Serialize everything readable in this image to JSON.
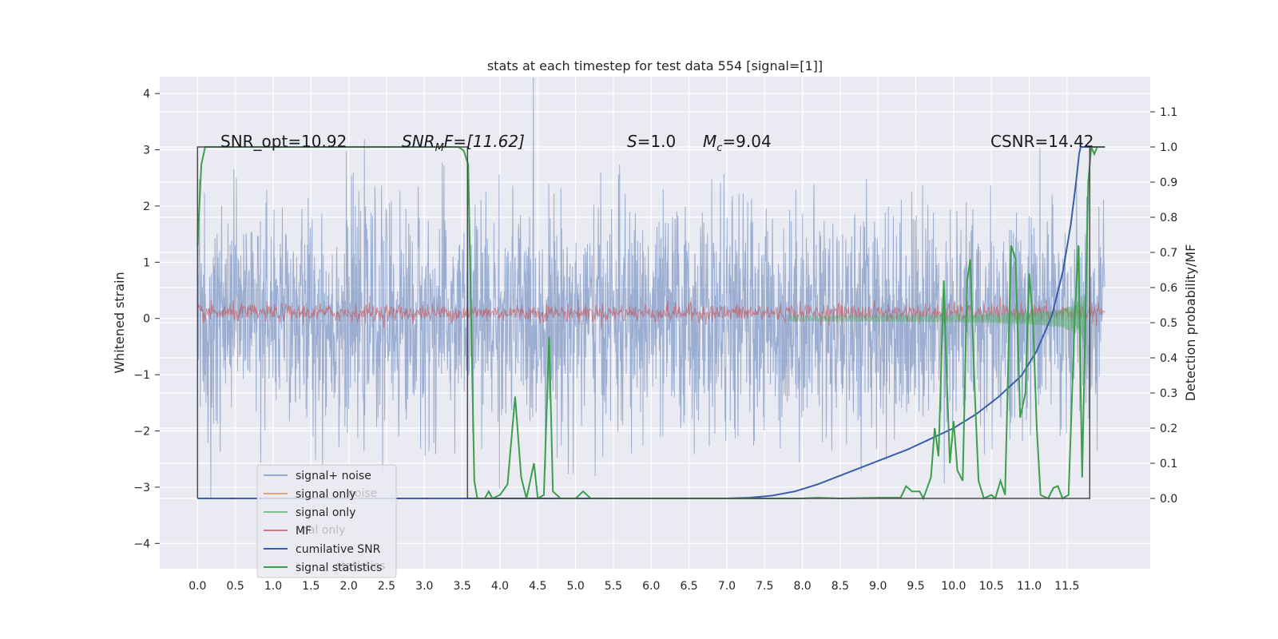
{
  "chart_data": {
    "type": "line",
    "title": "stats at each timestep for test data 554 [signal=[1]]",
    "ylabel": "Whitened strain",
    "ylabel_right": "Detection probability/MF",
    "xlim": [
      -0.5,
      12.6
    ],
    "ylim": [
      -4.45,
      4.3
    ],
    "ylim_right": [
      -0.2,
      1.2
    ],
    "xticks": [
      "0.0",
      "0.5",
      "1.0",
      "1.5",
      "2.0",
      "2.5",
      "3.0",
      "3.5",
      "4.0",
      "4.5",
      "5.0",
      "5.5",
      "6.0",
      "6.5",
      "7.0",
      "7.5",
      "8.0",
      "8.5",
      "9.0",
      "9.5",
      "10.0",
      "10.5",
      "11.0",
      "11.5"
    ],
    "yticks_left": [
      "4",
      "3",
      "2",
      "1",
      "0",
      "−1",
      "−2",
      "−3",
      "−4"
    ],
    "yticks_right": [
      "1.1",
      "1.0",
      "0.9",
      "0.8",
      "0.7",
      "0.6",
      "0.5",
      "0.4",
      "0.3",
      "0.2",
      "0.1",
      "0.0"
    ],
    "grid": true,
    "legend_position": "lower-left",
    "annotations": {
      "snr_opt": "SNR_opt=10.92",
      "snr_mf_base": "SNR",
      "snr_mf_sub": "M",
      "snr_mf_rest": "F=[11.62]",
      "s_sym": "S",
      "s_val": "=1.0",
      "mc_sym": "M",
      "mc_sub": "c",
      "mc_val": "=9.04",
      "csnr": "CSNR=14.42"
    },
    "legend": {
      "entries": [
        {
          "label": "signal+ noise",
          "color": "#4C72B0"
        },
        {
          "label": "signal only",
          "color": "#DD8452"
        },
        {
          "label": "signal only",
          "color": "#55A868"
        },
        {
          "label": "MF",
          "color": "#C44E52"
        },
        {
          "label": "cumilative SNR",
          "color": "#3A5FAA"
        },
        {
          "label": "signal statistics",
          "color": "#3BA04A"
        }
      ],
      "ghost_labels": [
        "noise",
        "nal only",
        "statistics"
      ]
    },
    "series": [
      {
        "name": "signal+ noise",
        "axis": "left",
        "style": "noise-band",
        "x_range": [
          0.0,
          12.0
        ],
        "sigma": 1.0,
        "color": "#4C72B0"
      },
      {
        "name": "MF",
        "axis": "left",
        "style": "noise-band",
        "x_range": [
          0.0,
          12.0
        ],
        "sigma": 0.08,
        "offset": 0.1,
        "color": "#C44E52"
      },
      {
        "name": "signal only",
        "axis": "left",
        "style": "chirp",
        "x_range": [
          7.8,
          11.75
        ],
        "color": "#55A868"
      },
      {
        "name": "cumilative SNR",
        "axis": "right",
        "color": "#3A5FAA",
        "points": [
          [
            0.0,
            0.0
          ],
          [
            7.0,
            0.0
          ],
          [
            7.3,
            0.002
          ],
          [
            7.6,
            0.008
          ],
          [
            7.9,
            0.02
          ],
          [
            8.2,
            0.04
          ],
          [
            8.5,
            0.065
          ],
          [
            8.8,
            0.09
          ],
          [
            9.1,
            0.115
          ],
          [
            9.4,
            0.14
          ],
          [
            9.7,
            0.17
          ],
          [
            10.0,
            0.2
          ],
          [
            10.3,
            0.24
          ],
          [
            10.6,
            0.29
          ],
          [
            10.9,
            0.35
          ],
          [
            11.1,
            0.42
          ],
          [
            11.3,
            0.52
          ],
          [
            11.45,
            0.65
          ],
          [
            11.55,
            0.78
          ],
          [
            11.62,
            0.9
          ],
          [
            11.66,
            0.98
          ],
          [
            11.68,
            1.0
          ],
          [
            12.0,
            1.0
          ]
        ]
      },
      {
        "name": "signal statistics",
        "axis": "right",
        "color": "#3BA04A",
        "points": [
          [
            0.0,
            0.72
          ],
          [
            0.05,
            0.95
          ],
          [
            0.1,
            1.0
          ],
          [
            3.45,
            1.0
          ],
          [
            3.52,
            0.99
          ],
          [
            3.58,
            0.95
          ],
          [
            3.62,
            0.5
          ],
          [
            3.66,
            0.05
          ],
          [
            3.7,
            0.0
          ],
          [
            3.8,
            0.0
          ],
          [
            3.85,
            0.02
          ],
          [
            3.9,
            0.0
          ],
          [
            4.0,
            0.01
          ],
          [
            4.1,
            0.04
          ],
          [
            4.2,
            0.29
          ],
          [
            4.28,
            0.06
          ],
          [
            4.35,
            0.0
          ],
          [
            4.45,
            0.1
          ],
          [
            4.5,
            0.0
          ],
          [
            4.58,
            0.01
          ],
          [
            4.65,
            0.46
          ],
          [
            4.7,
            0.02
          ],
          [
            4.8,
            0.0
          ],
          [
            5.0,
            0.0
          ],
          [
            5.1,
            0.02
          ],
          [
            5.2,
            0.0
          ],
          [
            6.0,
            0.0
          ],
          [
            7.0,
            0.0
          ],
          [
            7.5,
            0.0
          ],
          [
            8.0,
            0.0
          ],
          [
            8.2,
            0.002
          ],
          [
            8.5,
            0.0
          ],
          [
            9.0,
            0.002
          ],
          [
            9.3,
            0.002
          ],
          [
            9.37,
            0.035
          ],
          [
            9.45,
            0.02
          ],
          [
            9.55,
            0.02
          ],
          [
            9.6,
            0.0
          ],
          [
            9.7,
            0.06
          ],
          [
            9.75,
            0.2
          ],
          [
            9.8,
            0.12
          ],
          [
            9.87,
            0.62
          ],
          [
            9.9,
            0.4
          ],
          [
            9.95,
            0.1
          ],
          [
            10.0,
            0.22
          ],
          [
            10.05,
            0.08
          ],
          [
            10.12,
            0.05
          ],
          [
            10.18,
            0.62
          ],
          [
            10.22,
            0.68
          ],
          [
            10.28,
            0.3
          ],
          [
            10.33,
            0.05
          ],
          [
            10.4,
            0.0
          ],
          [
            10.5,
            0.01
          ],
          [
            10.55,
            0.0
          ],
          [
            10.62,
            0.05
          ],
          [
            10.68,
            0.01
          ],
          [
            10.76,
            0.72
          ],
          [
            10.82,
            0.68
          ],
          [
            10.88,
            0.23
          ],
          [
            10.95,
            0.3
          ],
          [
            11.0,
            0.64
          ],
          [
            11.05,
            0.5
          ],
          [
            11.1,
            0.2
          ],
          [
            11.15,
            0.01
          ],
          [
            11.25,
            0.0
          ],
          [
            11.32,
            0.03
          ],
          [
            11.38,
            0.035
          ],
          [
            11.44,
            0.0
          ],
          [
            11.52,
            0.01
          ],
          [
            11.6,
            0.5
          ],
          [
            11.65,
            0.72
          ],
          [
            11.7,
            0.06
          ],
          [
            11.78,
            0.9
          ],
          [
            11.82,
            1.0
          ],
          [
            11.86,
            0.98
          ],
          [
            11.9,
            1.0
          ],
          [
            12.0,
            1.0
          ]
        ]
      },
      {
        "name": "window",
        "axis": "right",
        "color": "#4a4a4a",
        "points": [
          [
            0.0,
            0.0
          ],
          [
            0.0,
            1.0
          ],
          [
            3.57,
            1.0
          ],
          [
            3.57,
            0.0
          ],
          [
            11.8,
            0.0
          ],
          [
            11.8,
            1.0
          ],
          [
            12.0,
            1.0
          ]
        ]
      }
    ]
  }
}
